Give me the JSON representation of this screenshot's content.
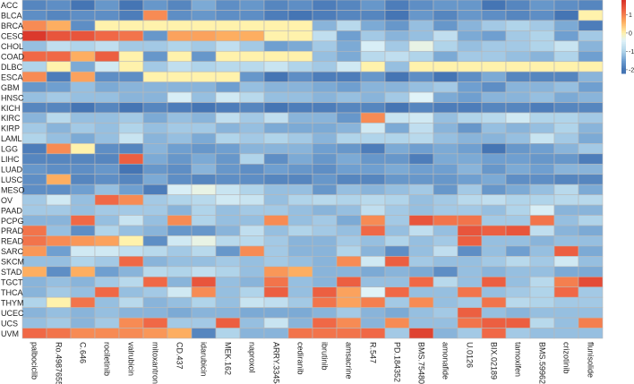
{
  "chart_data": {
    "type": "heatmap",
    "title": "",
    "xlabel": "",
    "ylabel": "",
    "rows": [
      "ACC",
      "BLCA",
      "BRCA",
      "CESC",
      "CHOL",
      "COAD",
      "DLBC",
      "ESCA",
      "GBM",
      "HNSC",
      "KICH",
      "KIRC",
      "KIRP",
      "LAML",
      "LGG",
      "LIHC",
      "LUAD",
      "LUSC",
      "MESO",
      "OV",
      "PAAD",
      "PCPG",
      "PRAD",
      "READ",
      "SARC",
      "SKCM",
      "STAD",
      "TGCT",
      "THCA",
      "THYM",
      "UCEC",
      "UCS",
      "UVM"
    ],
    "columns": [
      "palbociclib",
      "Ro.4987655",
      "C.646",
      "rociletinib",
      "valrubicin",
      "mitoxantrone",
      "CD.437",
      "idarubicin",
      "MEK.162",
      "naproxol",
      "ARRY.334543",
      "cediranib",
      "ibrutinib",
      "amsacrine",
      "R.547",
      "PD.184352",
      "BMS.754807",
      "amonafide",
      "U.0126",
      "BIX.02189",
      "tamoxifen",
      "BMS.599626",
      "crizotinib",
      "flunisolide"
    ],
    "values": [
      [
        -1.8,
        -1.7,
        -2,
        -1.6,
        -2,
        -1.6,
        -1.8,
        -1.4,
        -1.7,
        -1.6,
        -1.8,
        -1.7,
        -1.9,
        -1.8,
        -1.6,
        -1.9,
        -1.7,
        -1.6,
        -1.6,
        -2,
        -1.8,
        -1.6,
        -1.7,
        -1.8
      ],
      [
        -1.7,
        -1.8,
        -1.7,
        -1.7,
        -1.9,
        0.9,
        -1.7,
        -1.6,
        -1.7,
        -1.7,
        -1.9,
        -2,
        -1.9,
        -1.8,
        -1.8,
        -2,
        -1.6,
        -1.8,
        -1.6,
        -1.7,
        -1.8,
        -1.7,
        -2,
        0
      ],
      [
        0.9,
        0.6,
        -1.7,
        0,
        0,
        0,
        0,
        0,
        0,
        0,
        0,
        0,
        -1.3,
        -0.9,
        -1.4,
        -1.6,
        -1.2,
        -1.6,
        -1.3,
        -1.1,
        -1.0,
        -1.1,
        -1.4,
        -1.9
      ],
      [
        1.7,
        1.4,
        1.4,
        1.2,
        1.1,
        -1.6,
        0.7,
        0.7,
        0.6,
        0.6,
        0,
        0,
        -0.8,
        -1.5,
        -1.1,
        -1.3,
        -1.2,
        -0.8,
        -1.4,
        -1.5,
        -1.1,
        -1.0,
        -1.5,
        -1.1
      ],
      [
        -1.2,
        -0.8,
        -1.0,
        -0.8,
        -1.1,
        -1.1,
        -1.0,
        -1.1,
        -0.8,
        -1.1,
        -1.5,
        -1.4,
        -1.1,
        -1.4,
        -0.5,
        -1.1,
        -0.3,
        -1.0,
        -1.2,
        -1.1,
        -1.1,
        -1.0,
        -0.7,
        -1.3
      ],
      [
        1.2,
        1.2,
        0.6,
        1.3,
        0,
        -1.6,
        0,
        -1.6,
        0,
        0,
        0,
        0,
        -1.2,
        -1.4,
        -0.9,
        -0.8,
        -1.0,
        -1.4,
        -1.1,
        -1.1,
        -1.2,
        -1.3,
        -1.0,
        -1.5
      ],
      [
        -1.0,
        0,
        -1.4,
        -0.6,
        0,
        -1.1,
        -0.8,
        -1.0,
        -0.9,
        -0.9,
        -0.7,
        -1.0,
        -1.1,
        -0.6,
        0,
        -1.2,
        0,
        0,
        0,
        0,
        0,
        0,
        0,
        0
      ],
      [
        0.9,
        -1.9,
        0.7,
        -1.7,
        -1.7,
        0,
        0,
        0,
        0,
        -1.6,
        -2,
        -1.7,
        -1.9,
        -1.9,
        -1.6,
        -2,
        -1.7,
        -2,
        -1.7,
        -1.4,
        -1.8,
        -1.8,
        -1.8,
        -1.3
      ],
      [
        -1.6,
        -1.5,
        -1.2,
        -1.4,
        -1.3,
        -1.3,
        -1.3,
        -1.3,
        -1.5,
        -1.2,
        -1.3,
        -1.3,
        -1.4,
        -1.5,
        -1.3,
        -1.3,
        -1.2,
        -1.1,
        -1.5,
        -1.7,
        -1.3,
        -1.3,
        -1.2,
        -1.5
      ],
      [
        -1.2,
        -1.1,
        -1.2,
        -1.2,
        -1.3,
        -1.3,
        -0.5,
        -1.2,
        -0.6,
        -0.9,
        -1.2,
        -1.2,
        -1.3,
        -1.2,
        -1.3,
        -1.1,
        -0.4,
        -1.4,
        -1.5,
        -1.3,
        -1.3,
        -1.2,
        -1.4,
        -1.3
      ],
      [
        -1.8,
        -1.8,
        -2,
        -1.8,
        -2,
        -1.8,
        -1.9,
        -2,
        -1.9,
        -1.8,
        -2,
        -1.9,
        -1.9,
        -1.8,
        -1.8,
        -2,
        -1.8,
        -1.9,
        -1.9,
        -1.8,
        -1.8,
        -1.9,
        -1.8,
        -1.8
      ],
      [
        -1.3,
        -0.9,
        -1.2,
        -1.2,
        -1.1,
        -1.4,
        -1.2,
        -1.3,
        -0.8,
        -1.1,
        -0.8,
        -1.3,
        -1.3,
        -1.6,
        0.9,
        -0.7,
        -0.6,
        -1.2,
        -1.0,
        -0.9,
        -0.6,
        -1.0,
        -1.0,
        -1.1
      ],
      [
        -1.1,
        -1.3,
        -1.1,
        -1.2,
        -1.0,
        -1.2,
        -1.1,
        -1.1,
        -1.3,
        -1.2,
        -1.4,
        -1.4,
        -1.4,
        -1.3,
        -0.6,
        -1.4,
        -0.8,
        -1.3,
        -1.6,
        -1.2,
        -1.3,
        -1.2,
        -1.0,
        -1.3
      ],
      [
        -1.0,
        -1.2,
        -1.4,
        -1.2,
        -0.7,
        -1.3,
        -1.2,
        -1.4,
        -1.0,
        -1.1,
        -1.0,
        -1.1,
        -1.3,
        -1.0,
        -1.0,
        -1.0,
        -0.9,
        -1.2,
        -1.3,
        -1.3,
        -1.2,
        -0.7,
        -1.1,
        -1.4
      ],
      [
        -1.9,
        0.9,
        0,
        -1.7,
        -1.8,
        -1.3,
        -1.5,
        -1.6,
        -1.5,
        -1.3,
        -1.3,
        -1.3,
        -1.5,
        -1.6,
        -1.9,
        -1.4,
        -1.5,
        -1.4,
        -1.5,
        -2,
        -1.6,
        -1.5,
        -1.3,
        -1.1
      ],
      [
        -1.8,
        -1.8,
        -1.8,
        -1.8,
        1.3,
        -1.4,
        -1.6,
        -1.4,
        -1.6,
        -1.0,
        -1.7,
        -1.4,
        -1.6,
        -1.4,
        -1.6,
        -1.6,
        -1.9,
        -1.4,
        -1.4,
        -1.5,
        -1.5,
        -1.6,
        -1.6,
        -1.9
      ],
      [
        -1.6,
        -1.7,
        -1.7,
        -1.6,
        -2,
        -1.6,
        -1.7,
        -1.3,
        -1.6,
        -1.7,
        -1.5,
        -1.6,
        -1.7,
        -1.5,
        -1.5,
        -1.4,
        -1.5,
        -1.5,
        -1.3,
        -1.6,
        -1.4,
        -1.5,
        -1.3,
        -1.3
      ],
      [
        -1.7,
        0.6,
        -1.8,
        -1.7,
        -1.8,
        -1.4,
        -1.7,
        -1.8,
        -1.7,
        -1.7,
        -1.8,
        -1.8,
        -1.6,
        -1.8,
        -1.8,
        -1.6,
        -1.6,
        -1.6,
        -1.5,
        -1.4,
        -1.7,
        -1.7,
        -1.8,
        -1.8
      ],
      [
        -1.7,
        -1.7,
        -1.5,
        -1.2,
        -1.5,
        -1.9,
        -0.5,
        -0.3,
        -0.7,
        -1.0,
        -1.2,
        -1.2,
        -1.6,
        -1.2,
        -1.3,
        -1.2,
        -1.1,
        -1.6,
        -1.1,
        -1.6,
        -1.4,
        -1.2,
        -0.9,
        -1.4
      ],
      [
        -1.1,
        -0.6,
        -1.2,
        1.2,
        0.9,
        -1.1,
        -1.0,
        -0.9,
        -0.6,
        -0.7,
        -1.2,
        -1.0,
        -0.9,
        -1.0,
        -0.9,
        -1.0,
        -1.2,
        -1.1,
        -0.9,
        -0.8,
        -1.0,
        -1.0,
        -0.9,
        -0.9
      ],
      [
        -1.1,
        -1.1,
        -1.2,
        -1.1,
        -1.1,
        -1.1,
        -1.3,
        -1.0,
        -1.2,
        -1.1,
        -1.1,
        -1.2,
        -1.3,
        -1.2,
        -0.8,
        -1.1,
        -1.2,
        -1.1,
        -1.1,
        -1.2,
        -1.0,
        -0.5,
        -1.3,
        -1.3
      ],
      [
        -1.3,
        -1.3,
        1.2,
        -1.2,
        -0.7,
        -1.2,
        0.9,
        -1.0,
        -1.2,
        -1.2,
        0.9,
        -1.2,
        -1.1,
        -1.4,
        0.9,
        -1.1,
        1.4,
        1.1,
        1.1,
        -1.1,
        -1.1,
        1.1,
        -1.2,
        -1.0
      ],
      [
        1.1,
        -1.2,
        -1.7,
        -1.0,
        -1.2,
        -1.3,
        -1.6,
        -1.6,
        -1.3,
        -0.8,
        -1.2,
        -1.0,
        -1.1,
        -1.2,
        1.2,
        -1.2,
        -0.8,
        -1.2,
        1.4,
        1.3,
        1.4,
        -0.8,
        -1.3,
        -1.4
      ],
      [
        1.1,
        0.9,
        0.8,
        0.7,
        0,
        -1.7,
        -0.6,
        -0.3,
        -0.9,
        -0.9,
        -1.1,
        -1.3,
        -1.3,
        -1.1,
        -1.2,
        -1.0,
        -1.2,
        -1.1,
        1.3,
        -1.2,
        -1.2,
        -1.3,
        -1.2,
        -1.2
      ],
      [
        0.8,
        -1.5,
        -0.6,
        -0.6,
        -0.8,
        -0.9,
        -1.1,
        -0.9,
        -1.6,
        0.9,
        -1.1,
        -1.3,
        -1.3,
        -1.0,
        -1.3,
        -1.7,
        -1.2,
        -0.8,
        -1.7,
        -1.2,
        -1.5,
        -1.2,
        1.3,
        -1.4
      ],
      [
        -1.2,
        -1.2,
        -1.0,
        -1.1,
        1.2,
        -1.3,
        -1.2,
        -1.2,
        -1.1,
        -1.2,
        -1.1,
        -1.2,
        -1.3,
        0.9,
        -0.6,
        1.3,
        -1.1,
        -1.2,
        -1.2,
        -1.1,
        -0.9,
        -1.1,
        -0.6,
        -1.2
      ],
      [
        0.6,
        -1.7,
        0.6,
        -1.5,
        -1.3,
        -0.9,
        -1.0,
        -0.8,
        -1.0,
        -1.2,
        0.8,
        0.6,
        -1.3,
        -1.3,
        -1.4,
        -1.3,
        -1.4,
        -1.7,
        -1.2,
        -1.3,
        -1.2,
        -1.2,
        -1.4,
        -1.4
      ],
      [
        -1.3,
        -1.2,
        -1.3,
        -1.1,
        -0.9,
        1.2,
        -1.3,
        1.4,
        -1.2,
        -1.3,
        1.1,
        -1.2,
        -1.3,
        1.3,
        -1.2,
        -1.2,
        1.2,
        -0.9,
        -1.2,
        1.3,
        -1.2,
        -0.9,
        1.0,
        1.5
      ],
      [
        -1.3,
        -1.1,
        -1.2,
        1.2,
        -1.2,
        -1.1,
        -0.6,
        0.9,
        -1.2,
        -1.0,
        1.3,
        -1.2,
        1.3,
        0.7,
        -0.4,
        1.2,
        -1.2,
        -1.2,
        1.1,
        -1.2,
        -1.1,
        -1.0,
        1.2,
        -1.1
      ],
      [
        -1.0,
        0,
        1.1,
        -1.2,
        -0.9,
        -1.3,
        -1.2,
        -1.0,
        -1.2,
        -0.7,
        -0.8,
        -1.1,
        1.1,
        0.7,
        1.0,
        -1.1,
        0.9,
        -1.2,
        -1.1,
        1.1,
        -0.9,
        -1.0,
        -1.1,
        -1.1
      ],
      [
        -1.3,
        -1.2,
        -1.3,
        -1.2,
        -1.3,
        -1.3,
        -1.4,
        -1.3,
        -1.3,
        -1.4,
        -1.4,
        -1.4,
        -1.3,
        -1.1,
        -1.3,
        -1.4,
        -1.2,
        -1.1,
        1.3,
        -1.2,
        -1.3,
        -1.2,
        -1.2,
        -1.2
      ],
      [
        -1.2,
        -1.1,
        -1.3,
        -1.1,
        0.9,
        1.2,
        -1.1,
        -1.1,
        1.3,
        -1.2,
        -0.7,
        -1.3,
        1.2,
        0.9,
        -1.3,
        0.9,
        -1.2,
        -1.2,
        1.1,
        1.3,
        1.3,
        -0.9,
        -1.2,
        1.0
      ],
      [
        1.2,
        1.1,
        0.9,
        0.9,
        0.9,
        0.8,
        0.6,
        -1.8,
        -1.0,
        -1.3,
        -1.3,
        1.1,
        1.1,
        1.1,
        1.2,
        -1.1,
        1.6,
        -1.3,
        -1.1,
        1.2,
        -1.1,
        -1.2,
        -1.2,
        -1.2
      ]
    ],
    "colorbar": {
      "ticks": [
        1,
        0,
        -1,
        -2
      ],
      "range": [
        -2.2,
        1.8
      ],
      "colors": {
        "low": "#4575b4",
        "mid": "#fff2ac",
        "high": "#d73027"
      }
    },
    "grid": true
  }
}
